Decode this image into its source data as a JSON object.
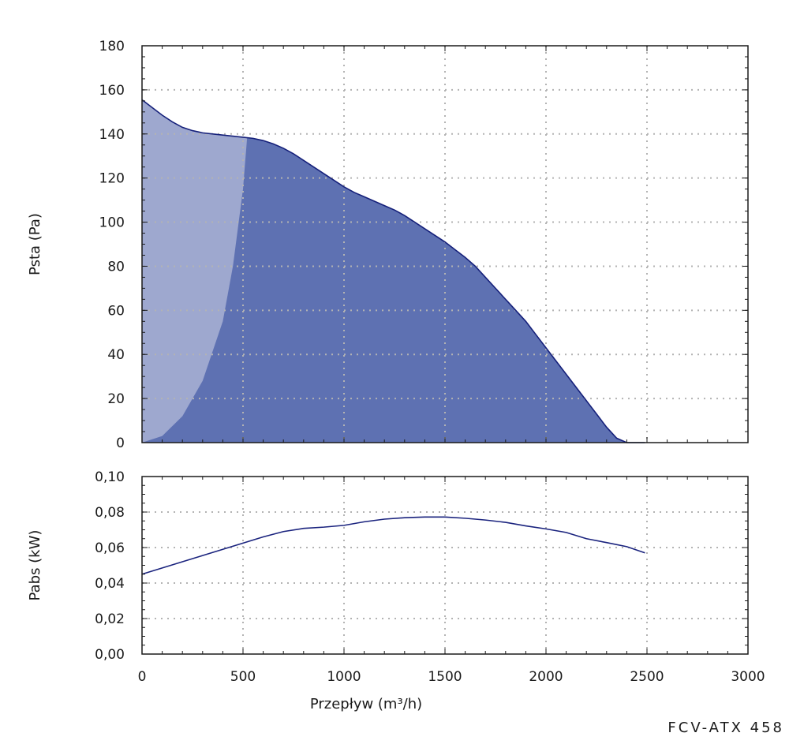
{
  "model_label": "FCV-ATX 458",
  "chart_data": [
    {
      "type": "area",
      "ylabel": "Psta (Pa)",
      "xlim": [
        0,
        3000
      ],
      "ylim": [
        0,
        180
      ],
      "x_ticks": [
        0,
        500,
        1000,
        1500,
        2000,
        2500,
        3000
      ],
      "y_ticks": [
        0,
        20,
        40,
        60,
        80,
        100,
        120,
        140,
        160,
        180
      ],
      "grid": true,
      "series": [
        {
          "x": [
            0,
            50,
            100,
            150,
            200,
            250,
            300,
            350,
            400,
            450,
            500,
            550,
            600,
            650,
            700,
            750,
            800,
            850,
            900,
            950,
            1000,
            1050,
            1100,
            1150,
            1200,
            1250,
            1300,
            1350,
            1400,
            1450,
            1500,
            1550,
            1600,
            1650,
            1700,
            1750,
            1800,
            1850,
            1900,
            1950,
            2000,
            2050,
            2100,
            2150,
            2200,
            2250,
            2300,
            2350,
            2400,
            2450,
            2490
          ],
          "y": [
            155.5,
            152,
            148.5,
            145.5,
            143,
            141.5,
            140.5,
            140,
            139.5,
            139,
            138.5,
            138,
            137,
            135.5,
            133.5,
            131,
            128,
            125,
            122,
            119,
            116,
            113.5,
            111.5,
            109.5,
            107.5,
            105.5,
            103,
            100,
            97,
            94,
            91,
            87.5,
            84,
            80,
            75,
            70,
            65,
            60,
            55,
            49,
            43,
            37,
            31,
            25,
            19,
            13,
            7,
            2,
            0,
            0,
            0
          ],
          "color": "#5e71b2"
        }
      ],
      "restricted_zone": {
        "x": [
          0,
          100,
          200,
          300,
          400,
          450,
          500,
          520
        ],
        "y": [
          0,
          3,
          12,
          28,
          55,
          80,
          115,
          138
        ],
        "color": "#9ea8cf"
      }
    },
    {
      "type": "line",
      "xlabel": "Przepływ (m³/h)",
      "ylabel": "Pabs (kW)",
      "xlim": [
        0,
        3000
      ],
      "ylim": [
        0,
        0.1
      ],
      "x_ticks": [
        0,
        500,
        1000,
        1500,
        2000,
        2500,
        3000
      ],
      "y_ticks": [
        0,
        0.02,
        0.04,
        0.06,
        0.08,
        0.1
      ],
      "y_tick_labels": [
        "0,00",
        "0,02",
        "0,04",
        "0,06",
        "0,08",
        "0,10"
      ],
      "grid": true,
      "series": [
        {
          "x": [
            0,
            100,
            200,
            300,
            400,
            500,
            600,
            700,
            800,
            900,
            1000,
            1100,
            1200,
            1300,
            1400,
            1500,
            1600,
            1700,
            1800,
            1900,
            2000,
            2100,
            2200,
            2300,
            2400,
            2490
          ],
          "y": [
            0.045,
            0.0485,
            0.052,
            0.0555,
            0.059,
            0.0625,
            0.066,
            0.069,
            0.0708,
            0.0715,
            0.0725,
            0.0745,
            0.076,
            0.0768,
            0.0772,
            0.0772,
            0.0765,
            0.0755,
            0.0742,
            0.0722,
            0.0705,
            0.0685,
            0.065,
            0.0628,
            0.0605,
            0.057
          ],
          "color": "#1a237e"
        }
      ]
    }
  ]
}
